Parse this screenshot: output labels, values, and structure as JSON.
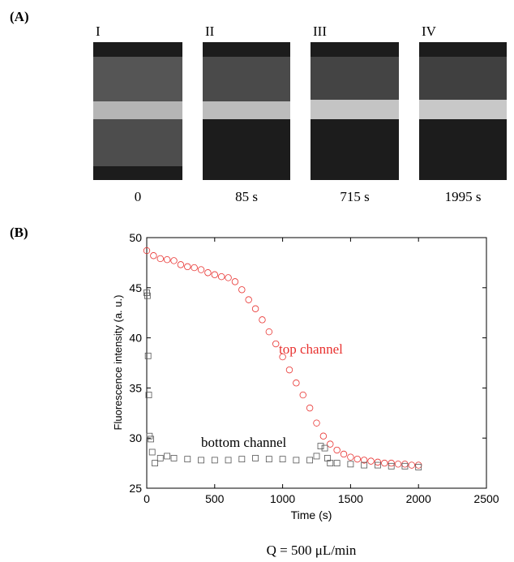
{
  "figure": {
    "panel_a": "(A)",
    "panel_b": "(B)",
    "frames": [
      {
        "numeral": "I",
        "time": "0"
      },
      {
        "numeral": "II",
        "time": "85 s"
      },
      {
        "numeral": "III",
        "time": "715 s"
      },
      {
        "numeral": "IV",
        "time": "1995 s"
      }
    ],
    "caption": "Q = 500 μL/min"
  },
  "chart_data": {
    "type": "scatter",
    "x_label": "Time (s)",
    "y_label": "Fluorescence intensity (a. u.)",
    "xlim": [
      0,
      2500
    ],
    "ylim": [
      25,
      50
    ],
    "xticks": [
      0,
      500,
      1000,
      1500,
      2000,
      2500
    ],
    "yticks": [
      25,
      30,
      35,
      40,
      45,
      50
    ],
    "grid": false,
    "series": [
      {
        "name": "top channel",
        "color": "#e8312f",
        "marker": "circle",
        "x": [
          0,
          50,
          100,
          150,
          200,
          250,
          300,
          350,
          400,
          450,
          500,
          550,
          600,
          650,
          700,
          750,
          800,
          850,
          900,
          950,
          1000,
          1050,
          1100,
          1150,
          1200,
          1250,
          1300,
          1350,
          1400,
          1450,
          1500,
          1550,
          1600,
          1650,
          1700,
          1750,
          1800,
          1850,
          1900,
          1950,
          2000
        ],
        "values": [
          48.7,
          48.2,
          47.9,
          47.8,
          47.7,
          47.3,
          47.1,
          47.0,
          46.8,
          46.5,
          46.3,
          46.1,
          46.0,
          45.6,
          44.8,
          43.8,
          42.9,
          41.8,
          40.6,
          39.4,
          38.1,
          36.8,
          35.5,
          34.3,
          33.0,
          31.5,
          30.2,
          29.4,
          28.8,
          28.4,
          28.1,
          27.9,
          27.8,
          27.7,
          27.6,
          27.5,
          27.5,
          27.4,
          27.4,
          27.3,
          27.3
        ]
      },
      {
        "name": "bottom channel",
        "color": "#555555",
        "marker": "square",
        "x": [
          0,
          5,
          10,
          15,
          20,
          30,
          40,
          60,
          100,
          150,
          200,
          300,
          400,
          500,
          600,
          700,
          800,
          900,
          1000,
          1100,
          1200,
          1250,
          1280,
          1310,
          1330,
          1350,
          1400,
          1500,
          1600,
          1700,
          1800,
          1900,
          2000
        ],
        "values": [
          44.5,
          44.2,
          38.2,
          34.3,
          30.2,
          29.9,
          28.6,
          27.5,
          28.0,
          28.2,
          28.0,
          27.9,
          27.8,
          27.8,
          27.8,
          27.9,
          28.0,
          27.9,
          27.9,
          27.8,
          27.8,
          28.2,
          29.2,
          29.0,
          28.0,
          27.5,
          27.5,
          27.4,
          27.3,
          27.3,
          27.2,
          27.2,
          27.1
        ]
      }
    ]
  }
}
